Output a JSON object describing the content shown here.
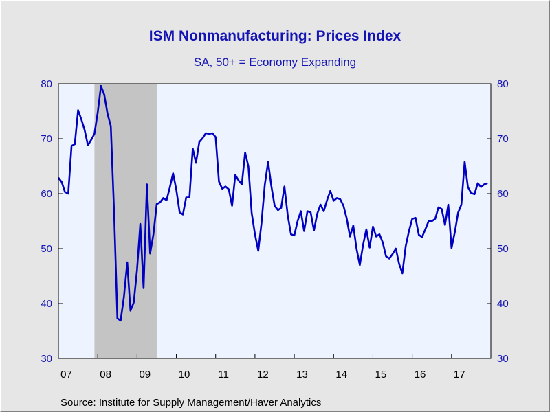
{
  "colors": {
    "series": "#0000c0",
    "plot_bg": "#eef4ff",
    "recession": "#c4c4c4",
    "text": "#1414b4"
  },
  "chart_data": {
    "type": "line",
    "title": "ISM Nonmanufacturing: Prices Index",
    "subtitle": "SA, 50+ = Economy Expanding",
    "source": "Source:  Institute for Supply Management/Haver Analytics",
    "ylim": [
      30,
      80
    ],
    "yticks": [
      30,
      40,
      50,
      60,
      70,
      80
    ],
    "xlim": [
      2007.0,
      2018.0
    ],
    "xtick_labels": [
      "07",
      "08",
      "09",
      "10",
      "11",
      "12",
      "13",
      "14",
      "15",
      "16",
      "17"
    ],
    "grid": false,
    "legend": "none",
    "shaded_regions": [
      {
        "label": "recession",
        "start": "2007-12",
        "end": "2009-06"
      }
    ],
    "series": [
      {
        "start": "2007-01",
        "frequency": "monthly",
        "values": [
          62.9,
          62.1,
          60.3,
          60.0,
          68.7,
          69.0,
          75.2,
          73.5,
          71.6,
          68.8,
          69.8,
          70.9,
          74.8,
          79.6,
          78.0,
          74.5,
          72.3,
          56.5,
          37.3,
          36.9,
          41.2,
          47.5,
          38.7,
          40.2,
          46.2,
          54.5,
          42.8,
          61.7,
          49.1,
          52.6,
          58.1,
          58.4,
          59.2,
          58.8,
          61.1,
          63.7,
          60.7,
          56.6,
          56.2,
          59.3,
          59.3,
          68.2,
          65.6,
          69.4,
          70.1,
          71.0,
          70.9,
          71.0,
          70.3,
          62.2,
          60.9,
          61.3,
          60.8,
          57.8,
          63.4,
          62.4,
          61.7,
          67.5,
          64.9,
          56.5,
          52.6,
          49.6,
          54.6,
          61.6,
          65.8,
          61.4,
          57.8,
          57.0,
          57.4,
          61.3,
          56.0,
          52.6,
          52.4,
          55.0,
          56.8,
          53.2,
          56.8,
          56.6,
          53.3,
          56.3,
          58.0,
          56.8,
          58.8,
          60.5,
          58.7,
          59.2,
          59.0,
          57.8,
          55.5,
          52.2,
          54.2,
          50.0,
          47.0,
          50.7,
          53.5,
          50.2,
          54.0,
          52.2,
          52.6,
          51.1,
          48.6,
          48.2,
          49.0,
          50.0,
          47.2,
          45.5,
          50.4,
          53.2,
          55.4,
          55.6,
          52.5,
          52.1,
          53.5,
          55.0,
          55.0,
          55.4,
          57.5,
          57.2,
          54.3,
          58.0,
          50.1,
          53.0,
          56.5,
          58.0,
          65.8,
          61.2,
          60.1,
          59.9,
          61.9,
          61.2,
          61.7,
          61.9
        ]
      }
    ]
  }
}
